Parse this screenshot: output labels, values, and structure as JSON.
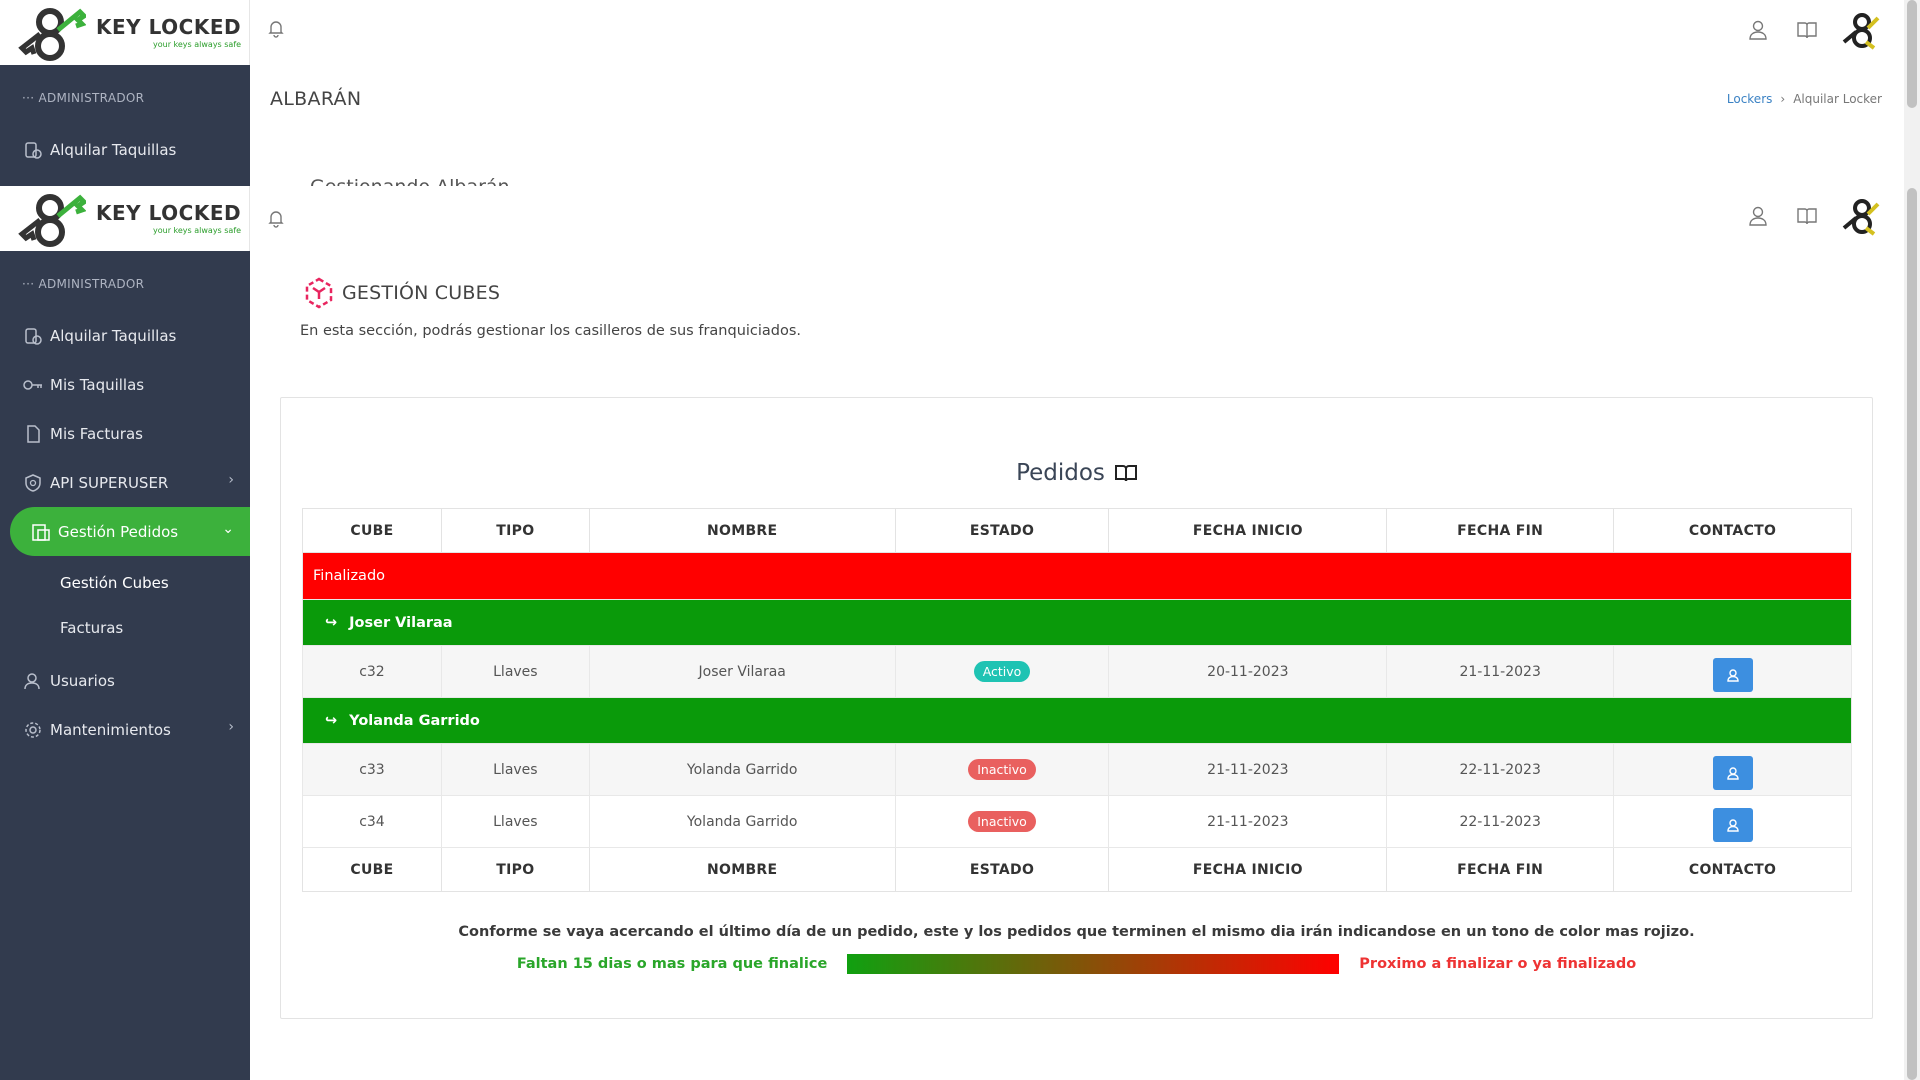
{
  "brand": {
    "title": "KEY LOCKED",
    "subtitle": "your keys always safe",
    "colors": {
      "green": "#3cb13c",
      "dark": "#333333"
    }
  },
  "layer1": {
    "sidebar": {
      "section": "ADMINISTRADOR",
      "items": [
        {
          "label": "Alquilar Taquillas",
          "icon": "locker-icon"
        }
      ]
    },
    "title": "ALBARÁN",
    "breadcrumb": {
      "link": "Lockers",
      "current": "Alquilar Locker"
    },
    "subtitle": "Gestionando Albarán"
  },
  "sidebar": {
    "section": "ADMINISTRADOR",
    "items": [
      {
        "label": "Alquilar Taquillas",
        "icon": "locker-icon"
      },
      {
        "label": "Mis Taquillas",
        "icon": "key-icon"
      },
      {
        "label": "Mis Facturas",
        "icon": "document-icon"
      },
      {
        "label": "API SUPERUSER",
        "icon": "shield-icon",
        "has_children": true
      },
      {
        "label": "Gestión Pedidos",
        "icon": "orders-icon",
        "active": true,
        "expanded": true
      },
      {
        "label": "Usuarios",
        "icon": "user-icon"
      },
      {
        "label": "Mantenimientos",
        "icon": "gear-icon",
        "has_children": true
      }
    ],
    "subitems": [
      {
        "label": "Gestión Cubes",
        "current": true
      },
      {
        "label": "Facturas"
      }
    ]
  },
  "page": {
    "title": "GESTIÓN CUBES",
    "description": "En esta sección, podrás gestionar los casilleros de sus franquiciados."
  },
  "orders": {
    "title": "Pedidos",
    "columns": [
      "CUBE",
      "TIPO",
      "NOMBRE",
      "ESTADO",
      "FECHA INICIO",
      "FECHA FIN",
      "CONTACTO"
    ],
    "status_group": "Finalizado",
    "groups": [
      {
        "name": "Joser Vilaraa",
        "rows": [
          {
            "cube": "c32",
            "tipo": "Llaves",
            "nombre": "Joser Vilaraa",
            "estado": "Activo",
            "inicio": "20-11-2023",
            "fin": "21-11-2023"
          }
        ]
      },
      {
        "name": "Yolanda Garrido",
        "rows": [
          {
            "cube": "c33",
            "tipo": "Llaves",
            "nombre": "Yolanda Garrido",
            "estado": "Inactivo",
            "inicio": "21-11-2023",
            "fin": "22-11-2023"
          },
          {
            "cube": "c34",
            "tipo": "Llaves",
            "nombre": "Yolanda Garrido",
            "estado": "Inactivo",
            "inicio": "21-11-2023",
            "fin": "22-11-2023"
          }
        ]
      }
    ],
    "note": "Conforme se vaya acercando el último día de un pedido, este y los pedidos que terminen el mismo dia irán indicandose en un tono de color mas rojizo.",
    "legend_left": "Faltan 15 dias o mas para que finalice",
    "legend_right": "Proximo a finalizar o ya finalizado",
    "colors": {
      "finalizado": "#ff0000",
      "group": "#0a9a0a",
      "activo": "#1fc3b3",
      "inactivo": "#e9605f",
      "contact": "#3d8fe0"
    }
  }
}
